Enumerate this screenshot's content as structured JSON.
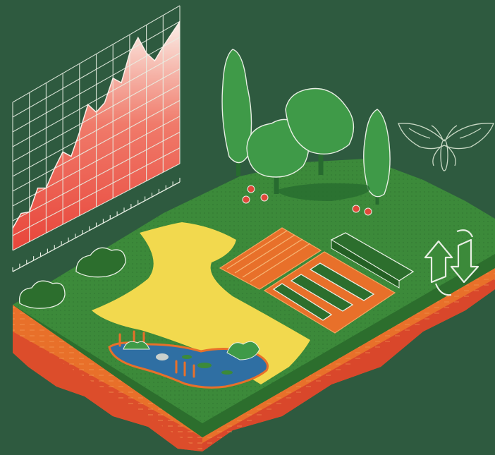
{
  "illustration": {
    "background_color": "#2e5a3f",
    "palette": {
      "grass": "#3c8a3a",
      "grass_dark": "#2c6e2d",
      "sand": "#f2d94e",
      "soil_orange": "#e8702a",
      "soil_red": "#d9472b",
      "water": "#2f6fa3",
      "tree_light": "#3f9a48",
      "tree_dark": "#276b2f",
      "chart_red": "#e8453a",
      "chart_white": "#f5f0ea",
      "line_white": "#e8efe4",
      "fruit_red": "#e0493a"
    },
    "icons": [
      "chart-graph-icon",
      "moth-icon",
      "cycle-arrows-icon"
    ]
  },
  "chart_data": {
    "type": "area",
    "title": "",
    "xlabel": "",
    "ylabel": "",
    "x": [
      0,
      1,
      2,
      3,
      4,
      5,
      6,
      7,
      8,
      9,
      10,
      11,
      12,
      13,
      14,
      15,
      16,
      17,
      18,
      19,
      20
    ],
    "values": [
      0.15,
      0.22,
      0.2,
      0.33,
      0.3,
      0.4,
      0.48,
      0.42,
      0.55,
      0.7,
      0.62,
      0.65,
      0.78,
      0.72,
      0.88,
      0.95,
      0.82,
      0.74,
      0.8,
      0.85,
      0.9
    ],
    "ylim": [
      0,
      1
    ],
    "grid": true,
    "legend": "none"
  }
}
